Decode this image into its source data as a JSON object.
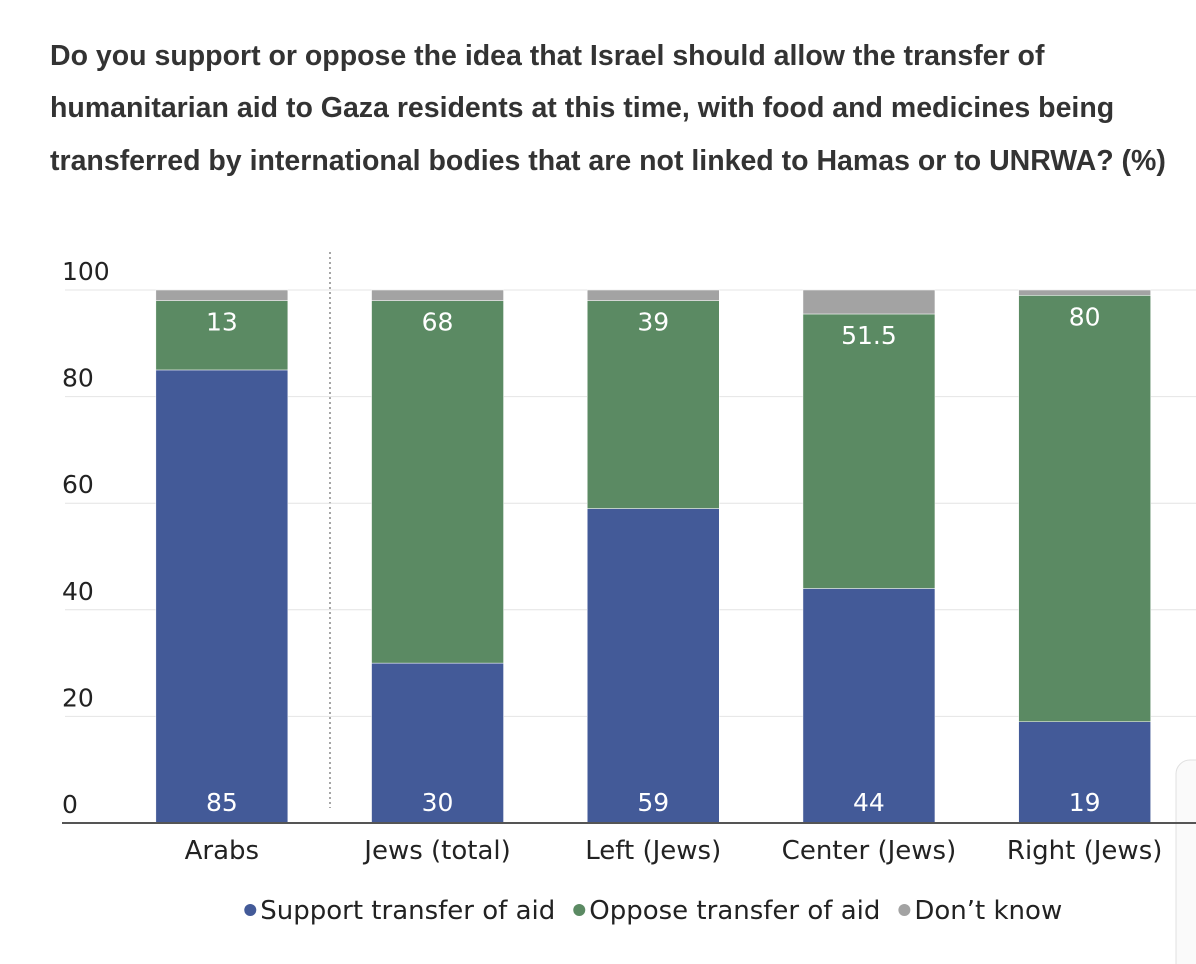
{
  "chart_data": {
    "type": "stacked_bar",
    "title": [
      "Do you support or oppose the idea that Israel should allow the transfer of",
      "humanitarian aid to Gaza residents at this time, with food and medicines being",
      "transferred by international bodies that are not linked to Hamas or to UNRWA? (%)"
    ],
    "categories": [
      "Arabs",
      "Jews (total)",
      "Left (Jews)",
      "Center (Jews)",
      "Right (Jews)"
    ],
    "series": [
      {
        "name": "Support transfer of aid",
        "color": "#435a98",
        "values": [
          85,
          30,
          59,
          44,
          19
        ],
        "label_position": "bottom"
      },
      {
        "name": "Oppose transfer of aid",
        "color": "#5b8a63",
        "values": [
          13,
          68,
          39,
          51.5,
          80
        ],
        "label_position": "top"
      },
      {
        "name": "Don’t know",
        "color": "#a3a3a3",
        "values": [
          2,
          2,
          2,
          4.5,
          1
        ]
      }
    ],
    "ylim": [
      0,
      100
    ],
    "yticks": [
      0,
      20,
      40,
      60,
      80,
      100
    ],
    "grid": true,
    "legend": "bottom"
  }
}
